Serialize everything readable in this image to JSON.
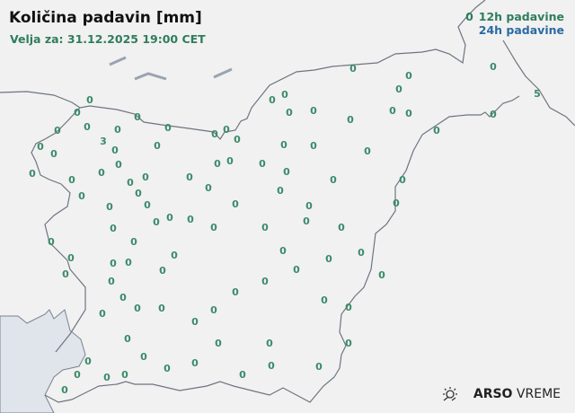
{
  "title": "Količina padavin [mm]",
  "subtitle": "Velja za: 31.12.2025 19:00 CET",
  "legend": {
    "sample_value": "0",
    "label_12h": "12h padavine",
    "label_24h": "24h padavine"
  },
  "colors": {
    "value_12h": "#3a8a69",
    "label_24h": "#2a6aa3",
    "border": "#6e7480",
    "sea": "#dfe5ea"
  },
  "stations": [
    "0",
    "0",
    "0",
    "0",
    "0",
    "0",
    "0",
    "0",
    "0",
    "0",
    "0",
    "0",
    "3",
    "0",
    "0",
    "0",
    "0",
    "0",
    "0",
    "0",
    "0",
    "0",
    "0",
    "0",
    "0",
    "0",
    "0",
    "0",
    "0",
    "0",
    "0",
    "0",
    "0",
    "0",
    "0",
    "0",
    "0",
    "0",
    "0",
    "0",
    "0",
    "0",
    "0",
    "0",
    "0",
    "0",
    "0",
    "0",
    "0",
    "0",
    "0",
    "0",
    "0",
    "0",
    "0",
    "0",
    "0",
    "0",
    "0",
    "5",
    "0",
    "0",
    "0",
    "0",
    "0",
    "0",
    "0",
    "0",
    "0",
    "0",
    "0",
    "0",
    "0",
    "0",
    "0",
    "0",
    "0",
    "0",
    "0",
    "0",
    "0",
    "0",
    "0",
    "0",
    "0",
    "0",
    "0",
    "0",
    "0",
    "0",
    "0",
    "0",
    "0",
    "0",
    "0",
    "0",
    "0",
    "0",
    "0",
    "0",
    "0"
  ],
  "logo": {
    "brand": "ARSO",
    "product": "VREME",
    "icon": "sun-cloud-icon"
  }
}
